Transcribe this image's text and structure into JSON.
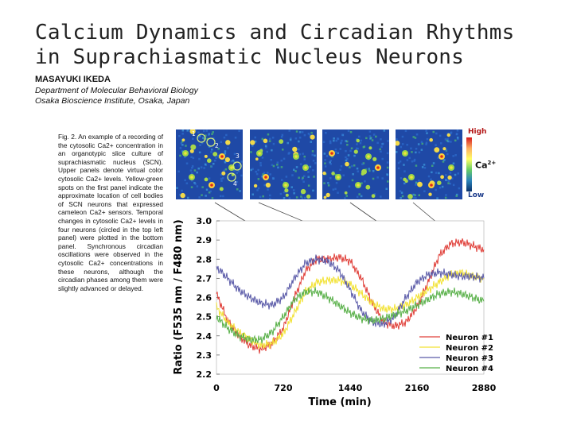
{
  "header": {
    "title_line1": "Calcium Dynamics and Circadian Rhythms",
    "title_line2": "in Suprachiasmatic Nucleus Neurons",
    "author": "MASAYUKI IKEDA",
    "affiliation_line1": "Department of Molecular Behavioral Biology",
    "affiliation_line2": "Osaka Bioscience Institute, Osaka, Japan"
  },
  "caption": "Fig. 2. An example of a recording of the cytosolic Ca2+ concentration in an organotypic slice culture of suprachiasmatic nucleus (SCN). Upper panels denote virtual color cytosolic Ca2+ levels. Yellow-green spots on the first panel indicate the approximate location of cell bodies of SCN neurons that expressed cameleon Ca2+ sensors. Temporal changes in cytosolic Ca2+ levels in four neurons (circled in the top left panel) were plotted in the bottom panel. Synchronous circadian oscillations were observed in the cytosolic Ca2+ concentrations in these neurons, although the circadian phases among them were slightly advanced or delayed.",
  "imaging": {
    "neuron_markers": [
      "1",
      "2",
      "3",
      "4"
    ],
    "colorbar_high": "High",
    "colorbar_low": "Low",
    "colorbar_label": "Ca",
    "colorbar_label_sup": "2+"
  },
  "chart_data": {
    "type": "line",
    "xlabel": "Time (min)",
    "ylabel": "Ratio (F535 nm / F480 nm)",
    "xlim": [
      0,
      2880
    ],
    "ylim": [
      2.2,
      3.0
    ],
    "x_ticks": [
      0,
      720,
      1440,
      2160,
      2880
    ],
    "y_ticks": [
      2.2,
      2.3,
      2.4,
      2.5,
      2.6,
      2.7,
      2.8,
      2.9,
      3.0
    ],
    "legend_position": "bottom-right",
    "x": [
      0,
      120,
      240,
      360,
      480,
      600,
      720,
      840,
      960,
      1080,
      1200,
      1320,
      1440,
      1560,
      1680,
      1800,
      1920,
      2040,
      2160,
      2280,
      2400,
      2520,
      2640,
      2760,
      2880
    ],
    "series": [
      {
        "name": "Neuron #1",
        "color": "#e0403a",
        "values": [
          2.62,
          2.48,
          2.4,
          2.35,
          2.33,
          2.36,
          2.44,
          2.6,
          2.74,
          2.8,
          2.8,
          2.81,
          2.79,
          2.7,
          2.57,
          2.47,
          2.45,
          2.47,
          2.55,
          2.68,
          2.82,
          2.88,
          2.89,
          2.87,
          2.85
        ]
      },
      {
        "name": "Neuron #2",
        "color": "#f2e233",
        "values": [
          2.55,
          2.47,
          2.42,
          2.38,
          2.35,
          2.36,
          2.41,
          2.52,
          2.63,
          2.68,
          2.69,
          2.69,
          2.67,
          2.62,
          2.57,
          2.54,
          2.54,
          2.56,
          2.6,
          2.64,
          2.68,
          2.72,
          2.73,
          2.71,
          2.7
        ]
      },
      {
        "name": "Neuron #3",
        "color": "#5a5aa8",
        "values": [
          2.76,
          2.7,
          2.64,
          2.6,
          2.57,
          2.56,
          2.6,
          2.7,
          2.78,
          2.8,
          2.79,
          2.74,
          2.64,
          2.53,
          2.47,
          2.46,
          2.5,
          2.6,
          2.68,
          2.72,
          2.73,
          2.72,
          2.71,
          2.71,
          2.7
        ]
      },
      {
        "name": "Neuron #4",
        "color": "#58b048",
        "values": [
          2.5,
          2.44,
          2.4,
          2.38,
          2.38,
          2.42,
          2.5,
          2.59,
          2.63,
          2.63,
          2.6,
          2.56,
          2.52,
          2.49,
          2.48,
          2.49,
          2.51,
          2.53,
          2.56,
          2.59,
          2.62,
          2.63,
          2.62,
          2.6,
          2.58
        ]
      }
    ]
  }
}
